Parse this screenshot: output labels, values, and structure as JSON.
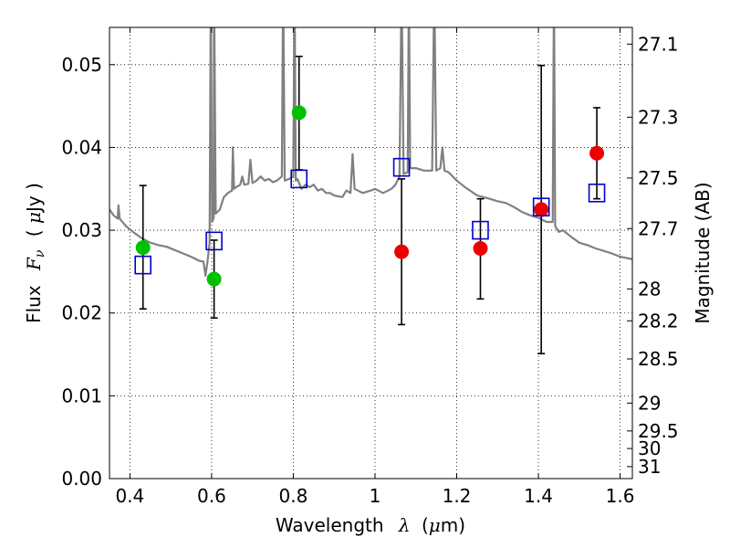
{
  "chart_data": {
    "type": "scatter",
    "xlabel": {
      "text": "Wavelength",
      "symbol": "λ",
      "unit_open": "(",
      "unit_mu": "μ",
      "unit_rest": "m)"
    },
    "ylabel": {
      "text": "Flux",
      "symbol": "F",
      "sub": "ν",
      "unit_open": "( ",
      "unit_mu": "μ",
      "unit_rest": "Jy )"
    },
    "y2label": "Magnitude (AB)",
    "xlim": [
      0.35,
      1.63
    ],
    "ylim": [
      0.0,
      0.0545
    ],
    "x_ticks": [
      0.4,
      0.6,
      0.8,
      1.0,
      1.2,
      1.4,
      1.6
    ],
    "x_tick_labels": [
      "0.4",
      "0.6",
      "0.8",
      "1",
      "1.2",
      "1.4",
      "1.6"
    ],
    "y_ticks": [
      0.0,
      0.01,
      0.02,
      0.03,
      0.04,
      0.05
    ],
    "y_tick_labels": [
      "0.00",
      "0.01",
      "0.02",
      "0.03",
      "0.04",
      "0.05"
    ],
    "mag_ticks": [
      27.1,
      27.3,
      27.5,
      27.7,
      28,
      28.2,
      28.5,
      29,
      29.5,
      30,
      31
    ],
    "mag_tick_labels": [
      "27.1",
      "27.3",
      "27.5",
      "27.7",
      "28",
      "28.2",
      "28.5",
      "29",
      "29.5",
      "30",
      "31"
    ],
    "grid": true,
    "colors": {
      "spectrum": "#808080",
      "green": "#00c000",
      "red": "#ee0000",
      "model": "#0000cc",
      "error": "#000000"
    },
    "spectrum": [
      [
        0.35,
        0.0325
      ],
      [
        0.36,
        0.0318
      ],
      [
        0.37,
        0.0314
      ],
      [
        0.372,
        0.033
      ],
      [
        0.375,
        0.0314
      ],
      [
        0.39,
        0.0305
      ],
      [
        0.41,
        0.0297
      ],
      [
        0.43,
        0.029
      ],
      [
        0.45,
        0.0285
      ],
      [
        0.47,
        0.0282
      ],
      [
        0.49,
        0.028
      ],
      [
        0.51,
        0.0276
      ],
      [
        0.53,
        0.0272
      ],
      [
        0.55,
        0.0268
      ],
      [
        0.57,
        0.0263
      ],
      [
        0.58,
        0.0262
      ],
      [
        0.585,
        0.0245
      ],
      [
        0.59,
        0.0262
      ],
      [
        0.595,
        0.0285
      ],
      [
        0.598,
        0.06
      ],
      [
        0.601,
        0.031
      ],
      [
        0.605,
        0.0315
      ],
      [
        0.606,
        0.06
      ],
      [
        0.61,
        0.032
      ],
      [
        0.62,
        0.0325
      ],
      [
        0.63,
        0.034
      ],
      [
        0.64,
        0.0345
      ],
      [
        0.65,
        0.0348
      ],
      [
        0.652,
        0.04
      ],
      [
        0.655,
        0.035
      ],
      [
        0.66,
        0.0352
      ],
      [
        0.67,
        0.0355
      ],
      [
        0.675,
        0.0365
      ],
      [
        0.68,
        0.0355
      ],
      [
        0.69,
        0.0356
      ],
      [
        0.695,
        0.0385
      ],
      [
        0.7,
        0.0357
      ],
      [
        0.71,
        0.036
      ],
      [
        0.72,
        0.0365
      ],
      [
        0.73,
        0.036
      ],
      [
        0.74,
        0.0362
      ],
      [
        0.75,
        0.0358
      ],
      [
        0.76,
        0.036
      ],
      [
        0.772,
        0.0365
      ],
      [
        0.775,
        0.06
      ],
      [
        0.779,
        0.036
      ],
      [
        0.79,
        0.0362
      ],
      [
        0.8,
        0.0365
      ],
      [
        0.803,
        0.06
      ],
      [
        0.806,
        0.036
      ],
      [
        0.81,
        0.0362
      ],
      [
        0.82,
        0.035
      ],
      [
        0.83,
        0.0355
      ],
      [
        0.84,
        0.0352
      ],
      [
        0.85,
        0.0355
      ],
      [
        0.86,
        0.0348
      ],
      [
        0.87,
        0.035
      ],
      [
        0.88,
        0.0345
      ],
      [
        0.89,
        0.0345
      ],
      [
        0.9,
        0.0342
      ],
      [
        0.92,
        0.034
      ],
      [
        0.93,
        0.0348
      ],
      [
        0.94,
        0.0345
      ],
      [
        0.945,
        0.0392
      ],
      [
        0.95,
        0.035
      ],
      [
        0.97,
        0.0345
      ],
      [
        0.99,
        0.0348
      ],
      [
        1.0,
        0.035
      ],
      [
        1.02,
        0.0345
      ],
      [
        1.04,
        0.035
      ],
      [
        1.05,
        0.0355
      ],
      [
        1.055,
        0.036
      ],
      [
        1.06,
        0.0365
      ],
      [
        1.065,
        0.06
      ],
      [
        1.07,
        0.0368
      ],
      [
        1.08,
        0.037
      ],
      [
        1.083,
        0.06
      ],
      [
        1.086,
        0.0375
      ],
      [
        1.1,
        0.0375
      ],
      [
        1.12,
        0.0372
      ],
      [
        1.14,
        0.0372
      ],
      [
        1.145,
        0.06
      ],
      [
        1.15,
        0.0372
      ],
      [
        1.16,
        0.0375
      ],
      [
        1.165,
        0.04
      ],
      [
        1.17,
        0.0372
      ],
      [
        1.18,
        0.037
      ],
      [
        1.2,
        0.036
      ],
      [
        1.22,
        0.0352
      ],
      [
        1.25,
        0.0342
      ],
      [
        1.28,
        0.0338
      ],
      [
        1.3,
        0.0335
      ],
      [
        1.32,
        0.0333
      ],
      [
        1.34,
        0.0328
      ],
      [
        1.36,
        0.0322
      ],
      [
        1.38,
        0.0318
      ],
      [
        1.4,
        0.0315
      ],
      [
        1.42,
        0.031
      ],
      [
        1.435,
        0.031
      ],
      [
        1.438,
        0.06
      ],
      [
        1.441,
        0.0305
      ],
      [
        1.45,
        0.0298
      ],
      [
        1.46,
        0.03
      ],
      [
        1.48,
        0.0292
      ],
      [
        1.5,
        0.0285
      ],
      [
        1.52,
        0.0282
      ],
      [
        1.54,
        0.0278
      ],
      [
        1.56,
        0.0275
      ],
      [
        1.58,
        0.0272
      ],
      [
        1.6,
        0.0268
      ],
      [
        1.63,
        0.0265
      ]
    ],
    "observed": [
      {
        "x": 0.432,
        "y": 0.0279,
        "err_low": 0.0205,
        "err_high": 0.0354,
        "color": "green"
      },
      {
        "x": 0.606,
        "y": 0.0241,
        "err_low": 0.0194,
        "err_high": 0.0288,
        "color": "green"
      },
      {
        "x": 0.814,
        "y": 0.0442,
        "err_low": 0.0373,
        "err_high": 0.051,
        "color": "green"
      },
      {
        "x": 1.065,
        "y": 0.0274,
        "err_low": 0.0186,
        "err_high": 0.0362,
        "color": "red"
      },
      {
        "x": 1.258,
        "y": 0.0278,
        "err_low": 0.0217,
        "err_high": 0.0338,
        "color": "red"
      },
      {
        "x": 1.407,
        "y": 0.0325,
        "err_low": 0.0151,
        "err_high": 0.0499,
        "color": "red"
      },
      {
        "x": 1.543,
        "y": 0.0393,
        "err_low": 0.0338,
        "err_high": 0.0448,
        "color": "red"
      }
    ],
    "model_points": [
      {
        "x": 0.432,
        "y": 0.0258
      },
      {
        "x": 0.606,
        "y": 0.0287
      },
      {
        "x": 0.814,
        "y": 0.0362
      },
      {
        "x": 1.065,
        "y": 0.0376
      },
      {
        "x": 1.258,
        "y": 0.03
      },
      {
        "x": 1.407,
        "y": 0.0328
      },
      {
        "x": 1.543,
        "y": 0.0345
      }
    ]
  }
}
